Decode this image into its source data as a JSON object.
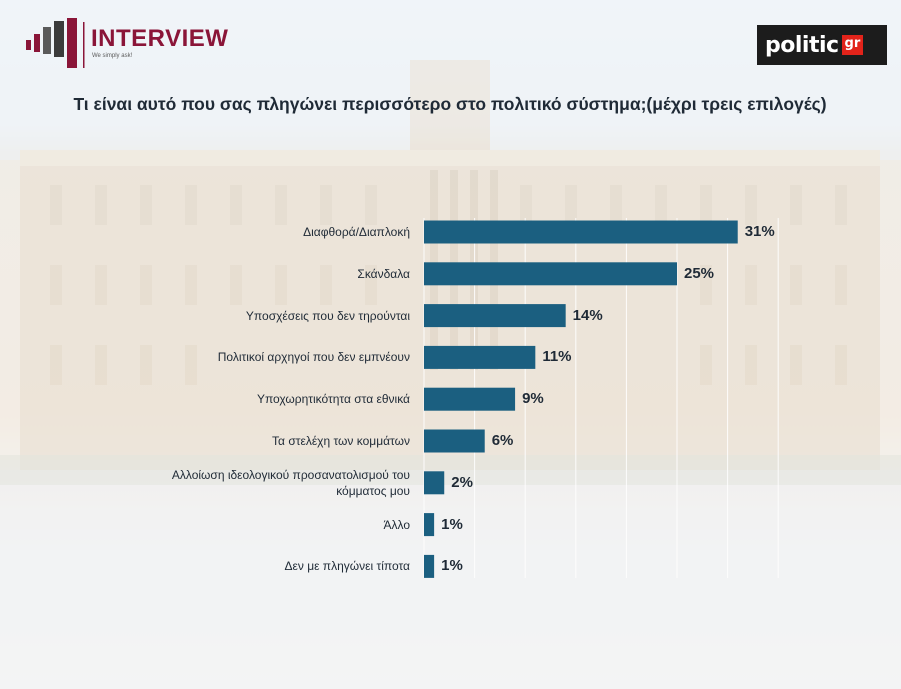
{
  "header": {
    "brand_name": "INTERVIEW",
    "brand_tagline": "We simply ask!",
    "partner_logo_main": "politic",
    "partner_logo_suffix": "gr"
  },
  "colors": {
    "bar": "#1b5f80",
    "brand": "#8a1538",
    "text": "#1f2a36"
  },
  "chart_data": {
    "type": "bar",
    "orientation": "horizontal",
    "title": "Τι είναι αυτό που σας πληγώνει περισσότερο στο πολιτικό σύστημα;(μέχρι τρεις επιλογές)",
    "categories": [
      "Διαφθορά/Διαπλοκή",
      "Σκάνδαλα",
      "Υποσχέσεις που δεν τηρούνται",
      "Πολιτικοί αρχηγοί που δεν εμπνέουν",
      "Υποχωρητικότητα στα εθνικά",
      "Τα στελέχη των κομμάτων",
      "Αλλοίωση ιδεολογικού προσανατολισμού του κόμματος μου",
      "Άλλο",
      "Δεν με πληγώνει τίποτα"
    ],
    "values": [
      31,
      25,
      14,
      11,
      9,
      6,
      2,
      1,
      1
    ],
    "value_labels": [
      "31%",
      "25%",
      "14%",
      "11%",
      "9%",
      "6%",
      "2%",
      "1%",
      "1%"
    ],
    "unit": "%",
    "xlim": [
      0,
      35
    ],
    "grid": true,
    "legend": "none"
  }
}
